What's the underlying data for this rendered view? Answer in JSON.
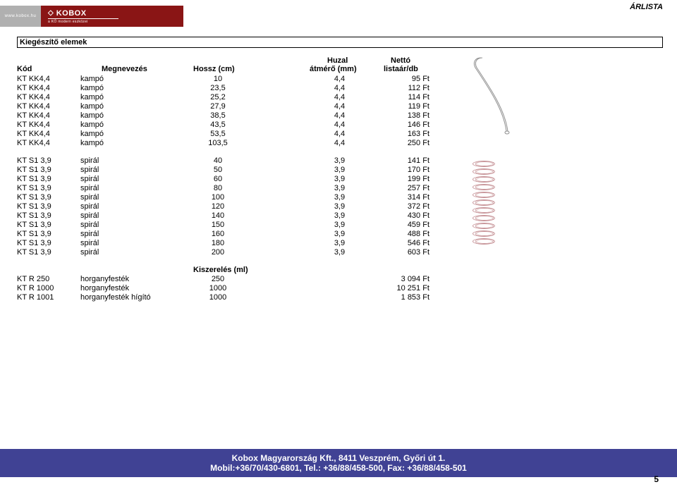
{
  "page_label": "ÁRLISTA",
  "logo": {
    "url": "www.kobox.hu",
    "brand": "KOBOX",
    "mark": "◇",
    "subtitle": "a KŐ modern eszközei"
  },
  "section_title": "Kiegészítő elemek",
  "headers": {
    "kod": "Kód",
    "megnevezes": "Megnevezés",
    "hossz": "Hossz (cm)",
    "huzal_top": "Huzal",
    "huzal_bottom": "átmérő (mm)",
    "netto_top": "Nettó",
    "netto_bottom": "listaár/db",
    "kiszereles": "Kiszerelés (ml)"
  },
  "group1": [
    {
      "kod": "KT KK4,4",
      "meg": "kampó",
      "hossz": "10",
      "huz": "4,4",
      "netto": "95 Ft"
    },
    {
      "kod": "KT KK4,4",
      "meg": "kampó",
      "hossz": "23,5",
      "huz": "4,4",
      "netto": "112 Ft"
    },
    {
      "kod": "KT KK4,4",
      "meg": "kampó",
      "hossz": "25,2",
      "huz": "4,4",
      "netto": "114 Ft"
    },
    {
      "kod": "KT KK4,4",
      "meg": "kampó",
      "hossz": "27,9",
      "huz": "4,4",
      "netto": "119 Ft"
    },
    {
      "kod": "KT KK4,4",
      "meg": "kampó",
      "hossz": "38,5",
      "huz": "4,4",
      "netto": "138 Ft"
    },
    {
      "kod": "KT KK4,4",
      "meg": "kampó",
      "hossz": "43,5",
      "huz": "4,4",
      "netto": "146 Ft"
    },
    {
      "kod": "KT KK4,4",
      "meg": "kampó",
      "hossz": "53,5",
      "huz": "4,4",
      "netto": "163 Ft"
    },
    {
      "kod": "KT KK4,4",
      "meg": "kampó",
      "hossz": "103,5",
      "huz": "4,4",
      "netto": "250 Ft"
    }
  ],
  "group2": [
    {
      "kod": "KT S1 3,9",
      "meg": "spirál",
      "hossz": "40",
      "huz": "3,9",
      "netto": "141 Ft"
    },
    {
      "kod": "KT S1 3,9",
      "meg": "spirál",
      "hossz": "50",
      "huz": "3,9",
      "netto": "170 Ft"
    },
    {
      "kod": "KT S1 3,9",
      "meg": "spirál",
      "hossz": "60",
      "huz": "3,9",
      "netto": "199 Ft"
    },
    {
      "kod": "KT S1 3,9",
      "meg": "spirál",
      "hossz": "80",
      "huz": "3,9",
      "netto": "257 Ft"
    },
    {
      "kod": "KT S1 3,9",
      "meg": "spirál",
      "hossz": "100",
      "huz": "3,9",
      "netto": "314 Ft"
    },
    {
      "kod": "KT S1 3,9",
      "meg": "spirál",
      "hossz": "120",
      "huz": "3,9",
      "netto": "372 Ft"
    },
    {
      "kod": "KT S1 3,9",
      "meg": "spirál",
      "hossz": "140",
      "huz": "3,9",
      "netto": "430 Ft"
    },
    {
      "kod": "KT S1 3,9",
      "meg": "spirál",
      "hossz": "150",
      "huz": "3,9",
      "netto": "459 Ft"
    },
    {
      "kod": "KT S1 3,9",
      "meg": "spirál",
      "hossz": "160",
      "huz": "3,9",
      "netto": "488 Ft"
    },
    {
      "kod": "KT S1 3,9",
      "meg": "spirál",
      "hossz": "180",
      "huz": "3,9",
      "netto": "546 Ft"
    },
    {
      "kod": "KT S1 3,9",
      "meg": "spirál",
      "hossz": "200",
      "huz": "3,9",
      "netto": "603 Ft"
    }
  ],
  "group3": [
    {
      "kod": "KT R 250",
      "meg": "horganyfesték",
      "hossz": "250",
      "netto": "3 094 Ft"
    },
    {
      "kod": "KT R 1000",
      "meg": "horganyfesték",
      "hossz": "1000",
      "netto": "10 251 Ft"
    },
    {
      "kod": "KT R 1001",
      "meg": "horganyfesték hígító",
      "hossz": "1000",
      "netto": "1 853 Ft"
    }
  ],
  "footer": {
    "line1": "Kobox Magyarország Kft., 8411 Veszprém, Győri út 1.",
    "line2": "Mobil:+36/70/430-6801, Tel.: +36/88/458-500, Fax: +36/88/458-501"
  },
  "page_number": "5",
  "colors": {
    "brand_bar_left": "#b0b0b0",
    "brand_bar_right": "#8a1515",
    "footer_bg": "#404294",
    "coil_stroke": "#c8969a",
    "hook_stroke": "#909090"
  }
}
